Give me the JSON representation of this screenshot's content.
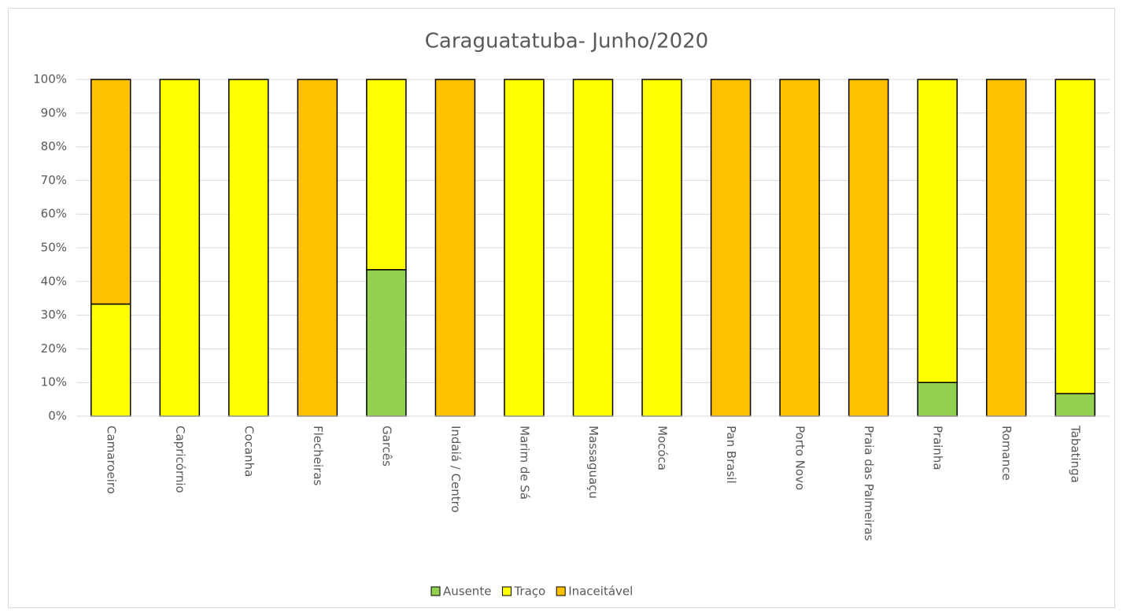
{
  "chart_data": {
    "type": "stacked_bar_percent",
    "title": "Caraguatatuba- Junho/2020",
    "categories": [
      "Camaroeiro",
      "Capricórnio",
      "Cocanha",
      "Flecheiras",
      "Garcês",
      "Indaiá / Centro",
      "Marim de Sá",
      "Massaguaçu",
      "Mocóca",
      "Pan Brasil",
      "Porto Novo",
      "Praia das Palmeiras",
      "Prainha",
      "Romance",
      "Tabatinga"
    ],
    "series": [
      {
        "name": "Ausente",
        "color": "#92d050",
        "values": [
          0,
          0,
          0,
          0,
          43.5,
          0,
          0,
          0,
          0,
          0,
          0,
          0,
          10,
          0,
          6.7
        ]
      },
      {
        "name": "Traço",
        "color": "#ffff00",
        "values": [
          33.3,
          100,
          100,
          0,
          56.5,
          0,
          100,
          100,
          100,
          0,
          0,
          0,
          90,
          0,
          93.3
        ]
      },
      {
        "name": "Inaceitável",
        "color": "#ffc000",
        "values": [
          66.7,
          0,
          0,
          100,
          0,
          100,
          0,
          0,
          0,
          100,
          100,
          100,
          0,
          100,
          0
        ]
      }
    ],
    "ylim": [
      0,
      100
    ],
    "yticks": [
      {
        "value": 0,
        "label": "0%"
      },
      {
        "value": 10,
        "label": "10%"
      },
      {
        "value": 20,
        "label": "20%"
      },
      {
        "value": 30,
        "label": "30%"
      },
      {
        "value": 40,
        "label": "40%"
      },
      {
        "value": 50,
        "label": "50%"
      },
      {
        "value": 60,
        "label": "60%"
      },
      {
        "value": 70,
        "label": "70%"
      },
      {
        "value": 80,
        "label": "80%"
      },
      {
        "value": 90,
        "label": "90%"
      },
      {
        "value": 100,
        "label": "100%"
      }
    ],
    "grid": true,
    "legend": "bottom"
  }
}
